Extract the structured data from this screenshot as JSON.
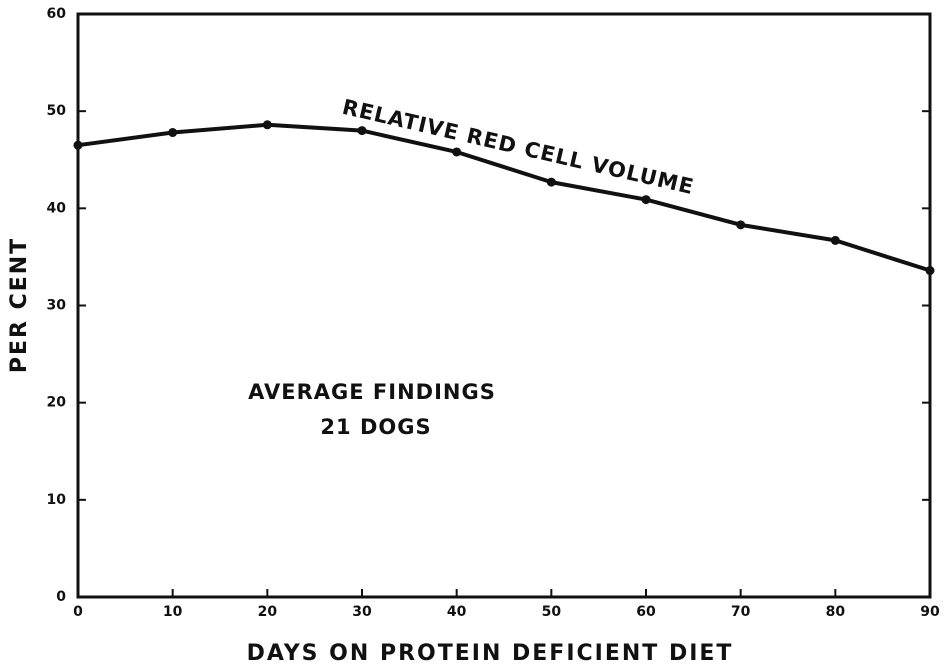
{
  "chart_data": {
    "type": "line",
    "xlabel": "DAYS ON PROTEIN DEFICIENT DIET",
    "ylabel": "PER CENT",
    "annotations": [
      "RELATIVE RED CELL VOLUME",
      "AVERAGE FINDINGS",
      "21 DOGS"
    ],
    "x": [
      0,
      10,
      20,
      30,
      40,
      50,
      60,
      70,
      80,
      90
    ],
    "series": [
      {
        "color": "#111111",
        "values": [
          46.5,
          47.8,
          48.6,
          48.0,
          45.8,
          42.7,
          40.9,
          38.3,
          36.7,
          33.6
        ]
      }
    ],
    "xlim": [
      0,
      90
    ],
    "xticks": [
      0,
      10,
      20,
      30,
      40,
      50,
      60,
      70,
      80,
      90
    ],
    "ylim": [
      0,
      60
    ],
    "yticks": [
      0,
      10,
      20,
      30,
      40,
      50,
      60
    ],
    "grid": false
  }
}
